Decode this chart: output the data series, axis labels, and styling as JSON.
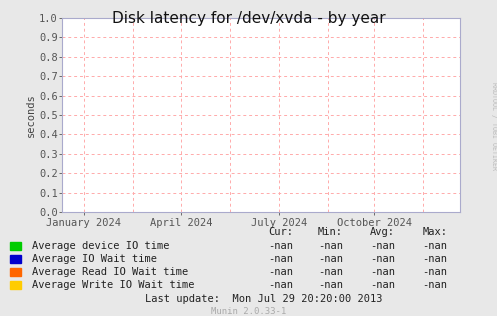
{
  "title": "Disk latency for /dev/xvda - by year",
  "ylabel": "seconds",
  "bg_color": "#e8e8e8",
  "plot_bg_color": "#ffffff",
  "grid_color": "#ffaaaa",
  "axis_color": "#aaaacc",
  "ylim": [
    0.0,
    1.0
  ],
  "yticks": [
    0.0,
    0.1,
    0.2,
    0.3,
    0.4,
    0.5,
    0.6,
    0.7,
    0.8,
    0.9,
    1.0
  ],
  "xtick_labels": [
    "January 2024",
    "April 2024",
    "July 2024",
    "October 2024"
  ],
  "xtick_positions": [
    0.055,
    0.3,
    0.545,
    0.785
  ],
  "vline_positions": [
    0.055,
    0.178,
    0.3,
    0.423,
    0.545,
    0.668,
    0.785,
    0.908
  ],
  "legend_items": [
    {
      "label": "Average device IO time",
      "color": "#00cc00"
    },
    {
      "label": "Average IO Wait time",
      "color": "#0000cc"
    },
    {
      "label": "Average Read IO Wait time",
      "color": "#ff6600"
    },
    {
      "label": "Average Write IO Wait time",
      "color": "#ffcc00"
    }
  ],
  "stats_header": [
    "Cur:",
    "Min:",
    "Avg:",
    "Max:"
  ],
  "stats_values": [
    "-nan",
    "-nan",
    "-nan",
    "-nan"
  ],
  "last_update": "Last update:  Mon Jul 29 20:20:00 2013",
  "munin_version": "Munin 2.0.33-1",
  "rrdtool_label": "RRDTOOL / TOBI OETIKER",
  "title_fontsize": 11,
  "axis_fontsize": 7.5,
  "legend_fontsize": 7.5,
  "stats_fontsize": 7.5
}
